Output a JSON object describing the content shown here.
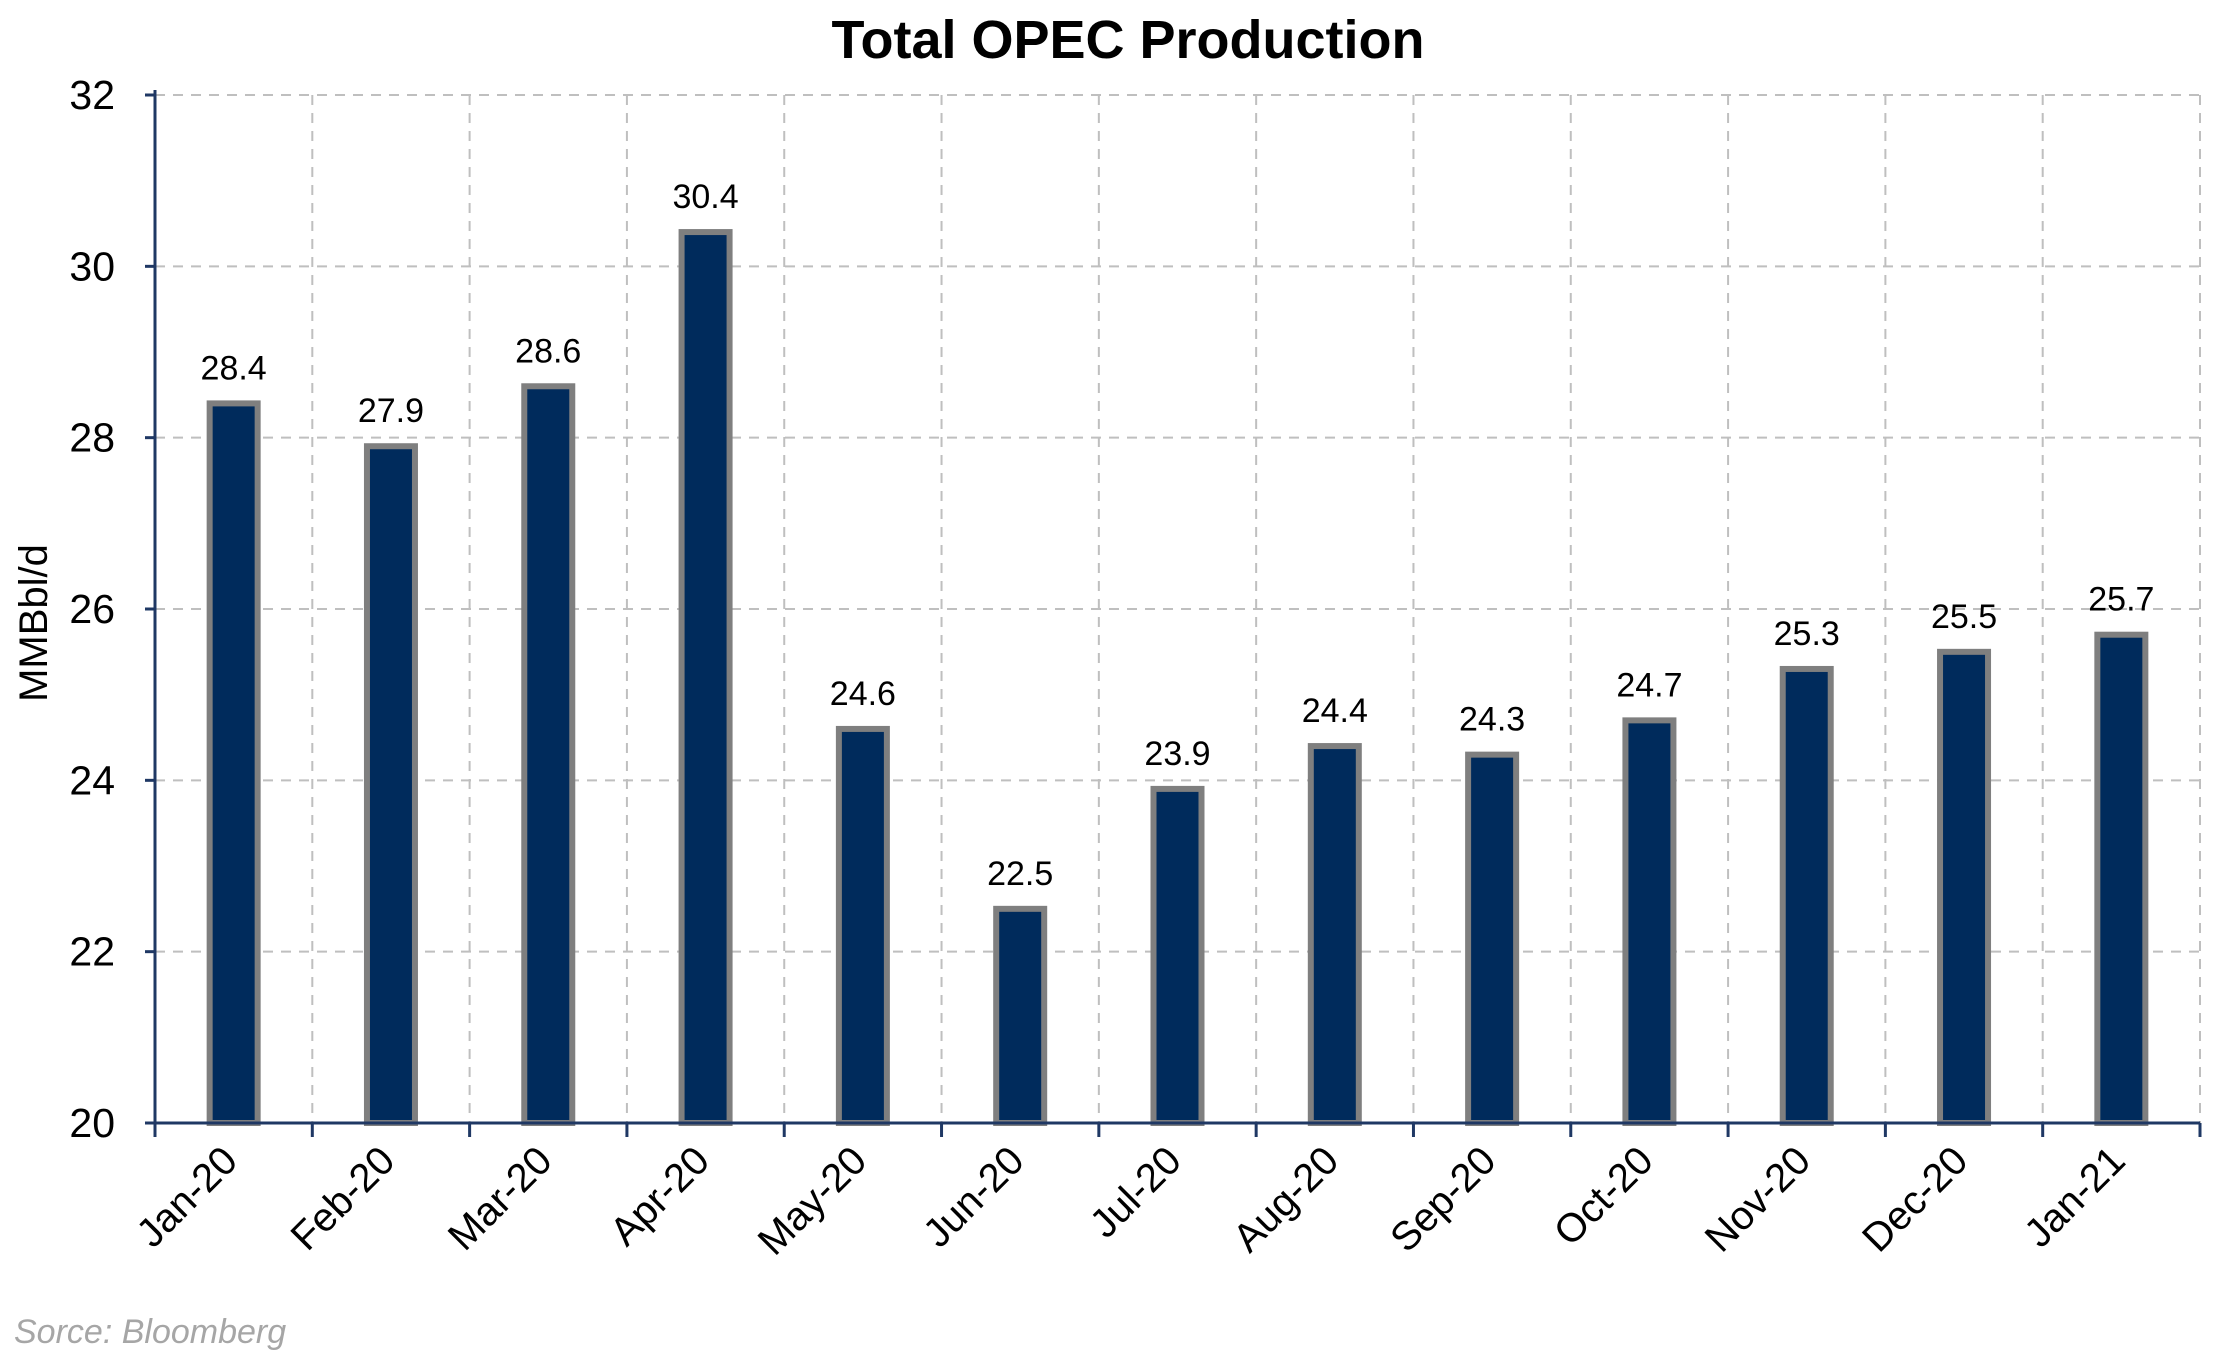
{
  "chart_data": {
    "type": "bar",
    "title": "Total OPEC Production",
    "xlabel": "",
    "ylabel": "MMBbl/d",
    "categories": [
      "Jan-20",
      "Feb-20",
      "Mar-20",
      "Apr-20",
      "May-20",
      "Jun-20",
      "Jul-20",
      "Aug-20",
      "Sep-20",
      "Oct-20",
      "Nov-20",
      "Dec-20",
      "Jan-21"
    ],
    "values": [
      28.4,
      27.9,
      28.6,
      30.4,
      24.6,
      22.5,
      23.9,
      24.4,
      24.3,
      24.7,
      25.3,
      25.5,
      25.7
    ],
    "data_labels": [
      "28.4",
      "27.9",
      "28.6",
      "30.4",
      "24.6",
      "22.5",
      "23.9",
      "24.4",
      "24.3",
      "24.7",
      "25.3",
      "25.5",
      "25.7"
    ],
    "yticks": [
      20,
      22,
      24,
      26,
      28,
      30,
      32
    ],
    "ylim": [
      20,
      32
    ],
    "grid": true,
    "legend": "none",
    "colors": {
      "bar_fill": "#002b5c",
      "bar_stroke": "#7f7f7f",
      "axis": "#1f3864",
      "grid": "#bfbfbf"
    }
  },
  "source_note": "Sorce: Bloomberg"
}
